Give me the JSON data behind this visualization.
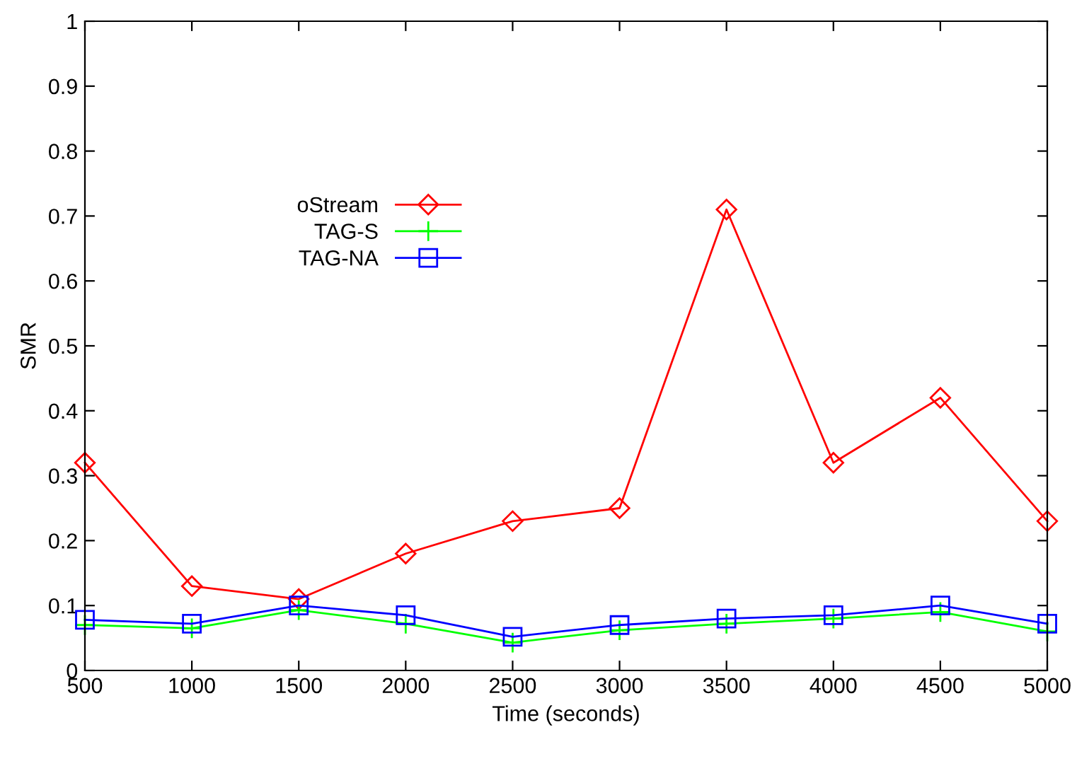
{
  "chart_data": {
    "type": "line",
    "xlabel": "Time (seconds)",
    "ylabel": "SMR",
    "x": [
      500,
      1000,
      1500,
      2000,
      2500,
      3000,
      3500,
      4000,
      4500,
      5000
    ],
    "series": [
      {
        "name": "oStream",
        "color": "#ff0000",
        "marker": "diamond",
        "values": [
          0.32,
          0.13,
          0.11,
          0.18,
          0.23,
          0.25,
          0.71,
          0.32,
          0.42,
          0.23
        ]
      },
      {
        "name": "TAG-S",
        "color": "#00ff00",
        "marker": "cross",
        "values": [
          0.07,
          0.065,
          0.093,
          0.072,
          0.043,
          0.062,
          0.072,
          0.08,
          0.09,
          0.06
        ]
      },
      {
        "name": "TAG-NA",
        "color": "#0000ff",
        "marker": "square",
        "values": [
          0.078,
          0.072,
          0.1,
          0.085,
          0.052,
          0.07,
          0.08,
          0.085,
          0.1,
          0.072
        ]
      }
    ],
    "xlim": [
      500,
      5000
    ],
    "ylim": [
      0,
      1
    ],
    "xticks": [
      500,
      1000,
      1500,
      2000,
      2500,
      3000,
      3500,
      4000,
      4500,
      5000
    ],
    "yticks": [
      0,
      0.1,
      0.2,
      0.3,
      0.4,
      0.5,
      0.6,
      0.7,
      0.8,
      0.9,
      1
    ],
    "grid": false,
    "legend": "top left",
    "line_style": "solid"
  }
}
